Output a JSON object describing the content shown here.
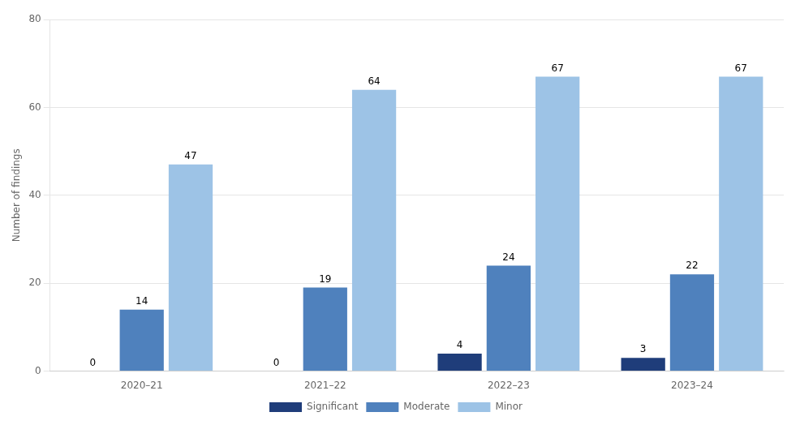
{
  "chart_data": {
    "type": "bar",
    "categories": [
      "2020–21",
      "2021–22",
      "2022–23",
      "2023–24"
    ],
    "series": [
      {
        "name": "Significant",
        "color": "#1f3d7a",
        "values": [
          0,
          0,
          4,
          3
        ]
      },
      {
        "name": "Moderate",
        "color": "#4f81bd",
        "values": [
          14,
          19,
          24,
          22
        ]
      },
      {
        "name": "Minor",
        "color": "#9dc3e6",
        "values": [
          47,
          64,
          67,
          67
        ]
      }
    ],
    "ylabel": "Number of findings",
    "ylim": [
      0,
      80
    ],
    "yticks": [
      0,
      20,
      40,
      60,
      80
    ],
    "grid": true,
    "legend": "bottom",
    "data_labels": true
  }
}
